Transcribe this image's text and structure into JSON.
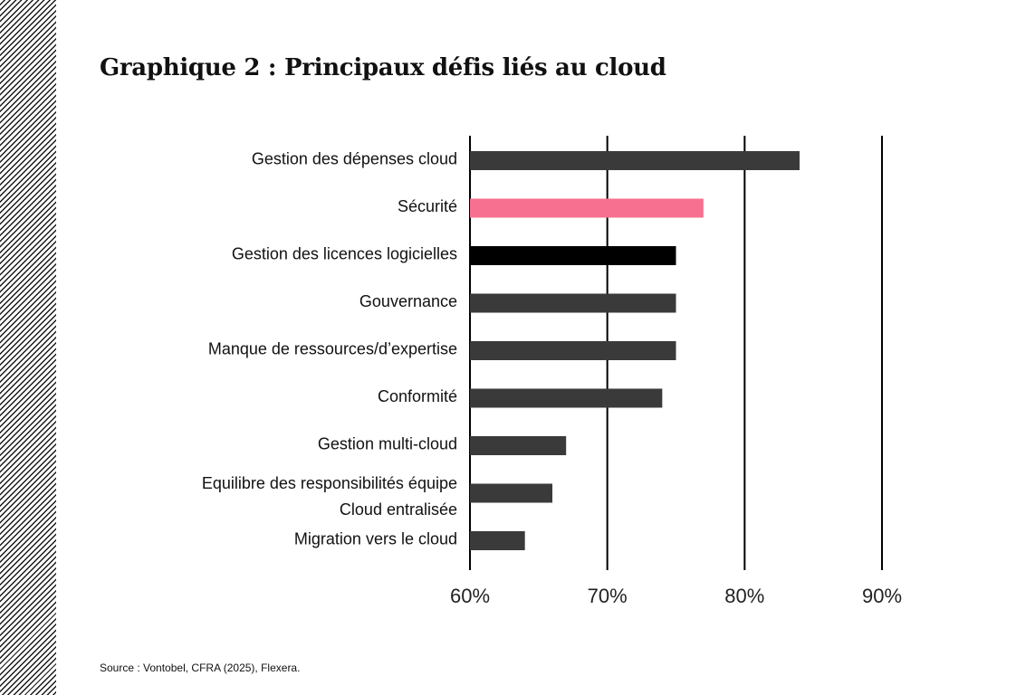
{
  "title": "Graphique 2 : Principaux défis liés au cloud",
  "source": "Source : Vontobel, CFRA (2025), Flexera.",
  "colors": {
    "default": "#3a3a3a",
    "highlight": "#f7708f",
    "dark": "#000000",
    "gridline": "#000000"
  },
  "chart_data": {
    "type": "bar",
    "orientation": "horizontal",
    "categories": [
      [
        "Gestion des dépenses cloud"
      ],
      [
        "Sécurité"
      ],
      [
        "Gestion des licences logicielles"
      ],
      [
        "Gouvernance"
      ],
      [
        "Manque de ressources/d’expertise"
      ],
      [
        "Conformité"
      ],
      [
        "Gestion multi-cloud"
      ],
      [
        "Equilibre des responsibilités équipe",
        "Cloud entralisée"
      ],
      [
        "Migration vers le cloud"
      ]
    ],
    "values": [
      84,
      77,
      75,
      75,
      75,
      74,
      67,
      66,
      64
    ],
    "bar_colors": [
      "default",
      "highlight",
      "dark",
      "default",
      "default",
      "default",
      "default",
      "default",
      "default"
    ],
    "xlim": [
      60,
      90
    ],
    "xticks": [
      60,
      70,
      80,
      90
    ],
    "xtick_labels": [
      "60%",
      "70%",
      "80%",
      "90%"
    ],
    "grid": "vertical"
  }
}
